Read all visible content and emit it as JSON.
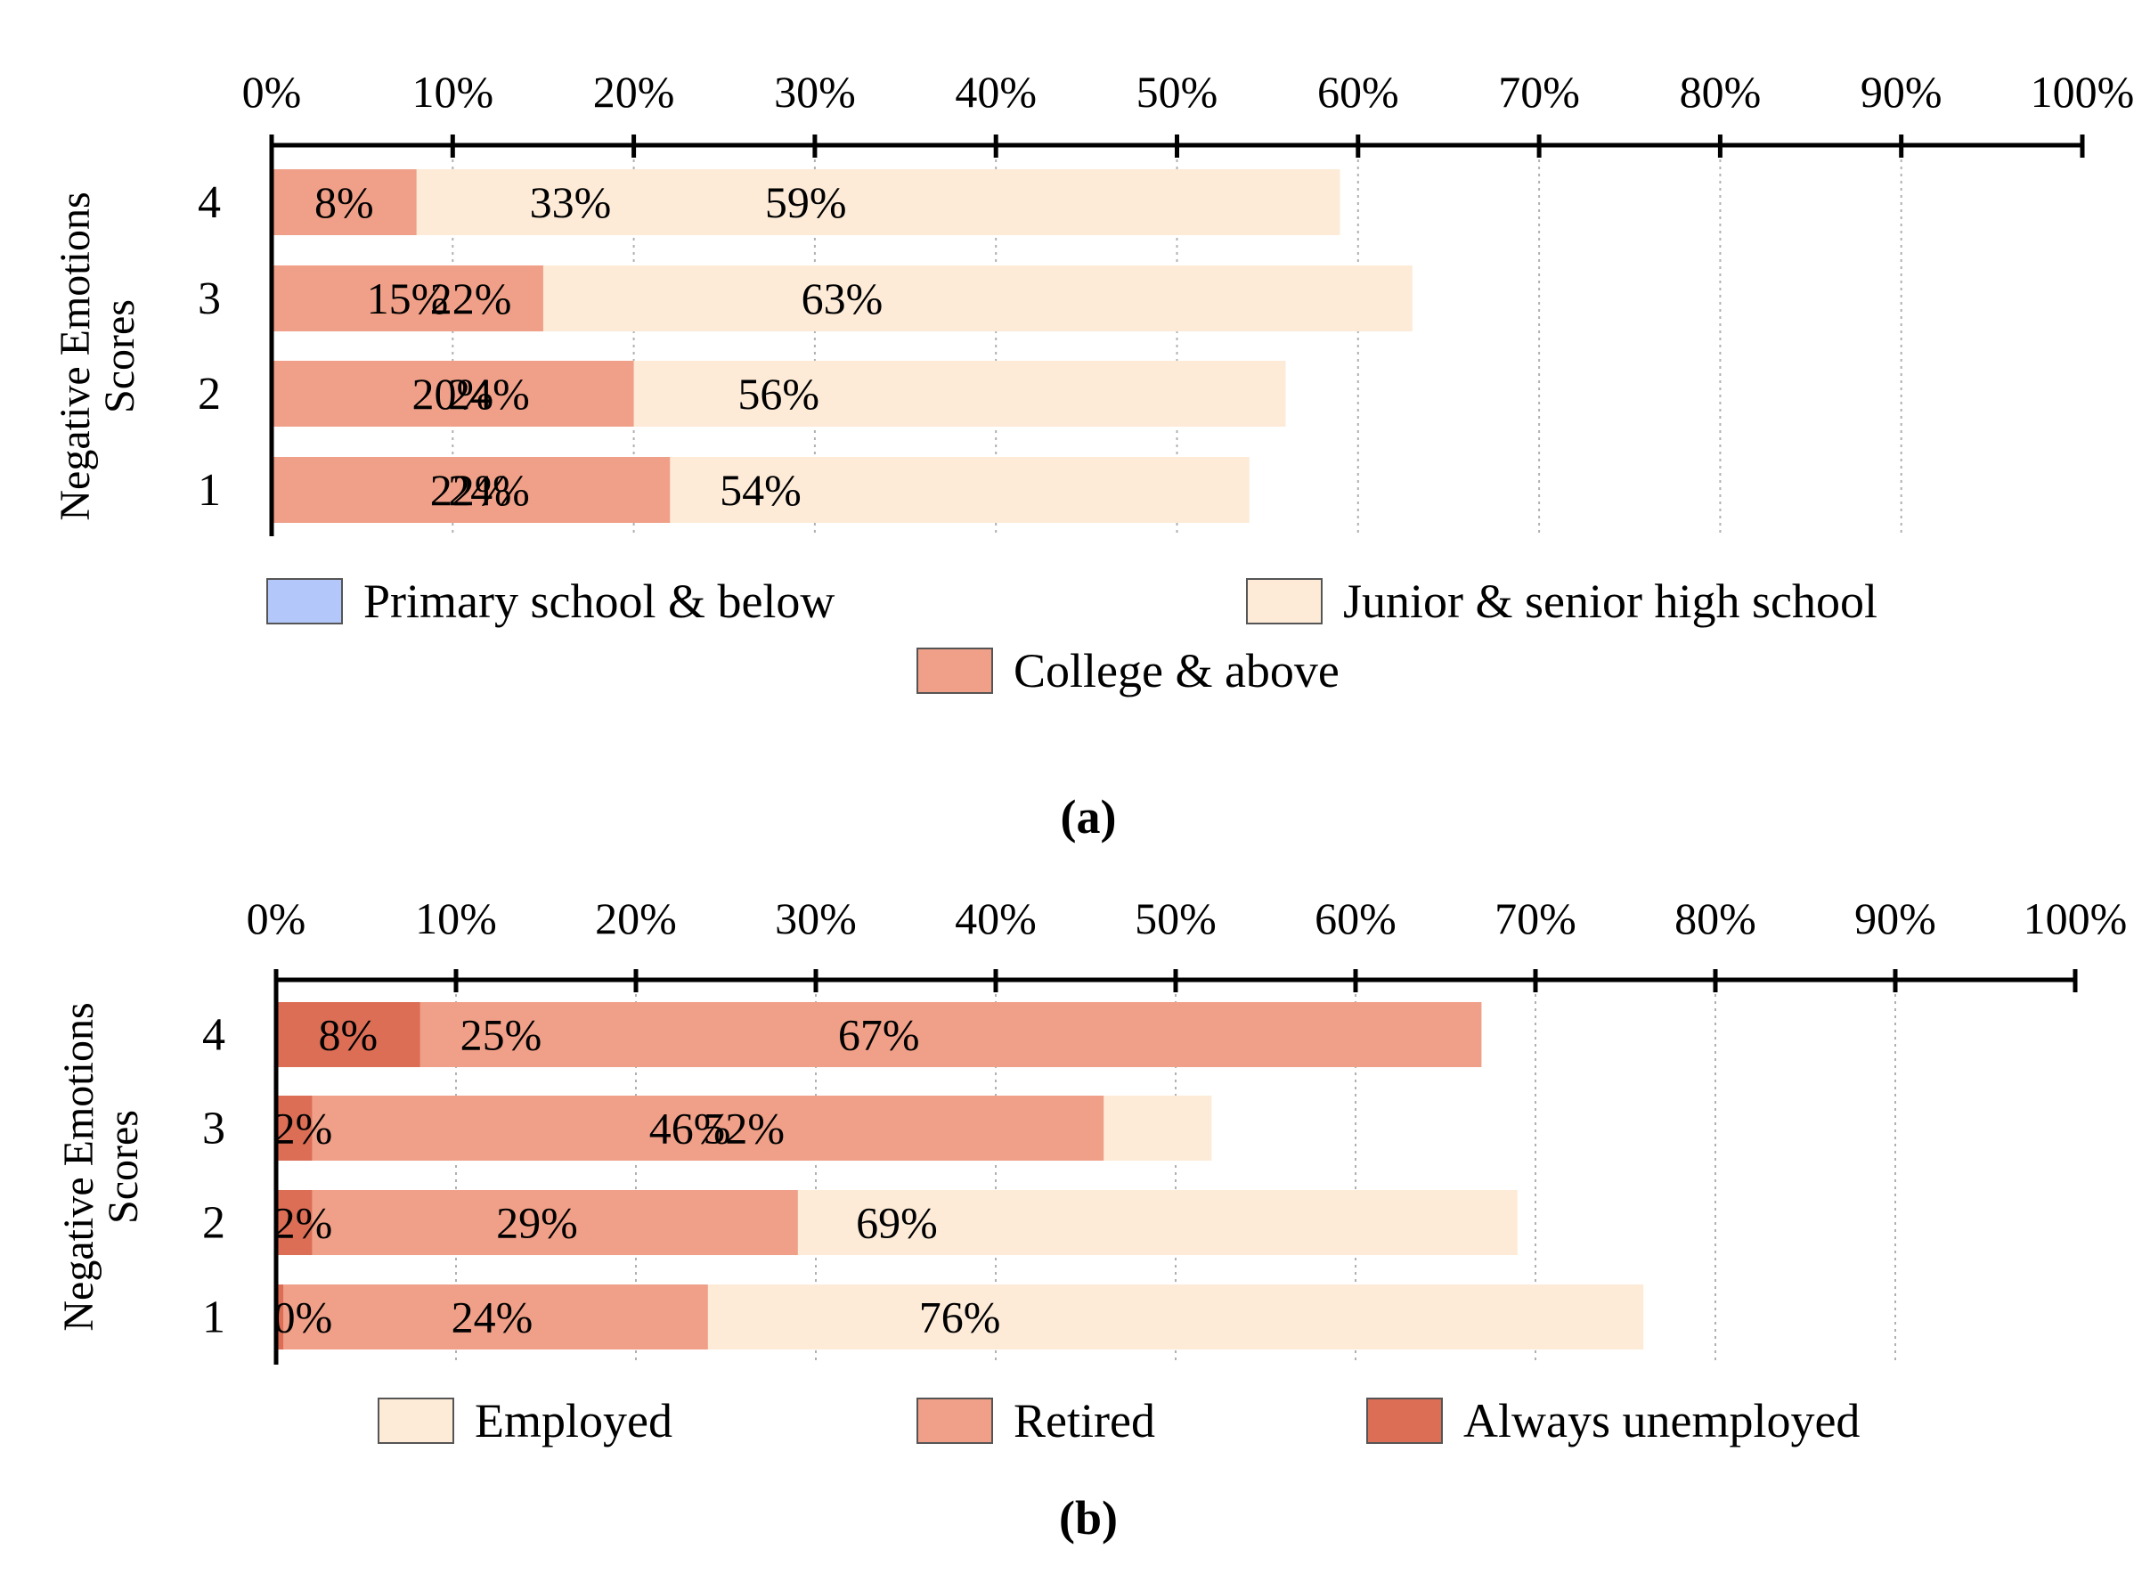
{
  "chart_data": [
    {
      "panel_label": "(a)",
      "type": "stacked-bar-horizontal-100",
      "ylabel_line1": "Negative Emotions",
      "ylabel_line2": "Scores",
      "xlim": [
        0,
        100
      ],
      "x_ticks": [
        "0%",
        "10%",
        "20%",
        "30%",
        "40%",
        "50%",
        "60%",
        "70%",
        "80%",
        "90%",
        "100%"
      ],
      "categories": [
        "4",
        "3",
        "2",
        "1"
      ],
      "series": [
        {
          "name": "Primary school & below",
          "color": "#b4c7fa",
          "values": [
            33,
            22,
            24,
            24
          ],
          "labels": [
            "33%",
            "22%",
            "24%",
            "24%"
          ]
        },
        {
          "name": "Junior & senior high school",
          "color": "#fdebd8",
          "values": [
            59,
            63,
            56,
            54
          ],
          "labels": [
            "59%",
            "63%",
            "56%",
            "54%"
          ]
        },
        {
          "name": "College & above",
          "color": "#f0a088",
          "values": [
            8,
            15,
            20,
            22
          ],
          "labels": [
            "8%",
            "15%",
            "20%",
            "22%"
          ]
        }
      ],
      "legend_position": "bottom"
    },
    {
      "panel_label": "(b)",
      "type": "stacked-bar-horizontal-100",
      "ylabel_line1": "Negative Emotions",
      "ylabel_line2": "Scores",
      "xlim": [
        0,
        100
      ],
      "x_ticks": [
        "0%",
        "10%",
        "20%",
        "30%",
        "40%",
        "50%",
        "60%",
        "70%",
        "80%",
        "90%",
        "100%"
      ],
      "categories": [
        "4",
        "3",
        "2",
        "1"
      ],
      "series": [
        {
          "name": "Employed",
          "color": "#fdebd8",
          "values": [
            25,
            52,
            69,
            76
          ],
          "labels": [
            "25%",
            "52%",
            "69%",
            "76%"
          ]
        },
        {
          "name": "Retired",
          "color": "#f0a088",
          "values": [
            67,
            46,
            29,
            24
          ],
          "labels": [
            "67%",
            "46%",
            "29%",
            "24%"
          ]
        },
        {
          "name": "Always unemployed",
          "color": "#dc6e56",
          "values": [
            8,
            2,
            2,
            0.4
          ],
          "labels": [
            "8%",
            "2%",
            "2%",
            "0%"
          ]
        }
      ],
      "legend_position": "bottom"
    }
  ]
}
